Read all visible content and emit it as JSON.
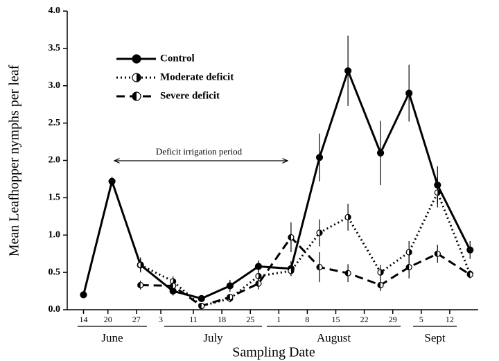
{
  "chart_data": {
    "type": "line",
    "x_label": "Sampling Date",
    "y_label": "Mean Leafhopper nymphs per leaf",
    "annotation": "Deficit irrigation period",
    "month_labels": [
      "June",
      "July",
      "August",
      "Sept"
    ],
    "x": [
      165,
      172,
      179,
      187,
      194,
      201,
      208,
      216,
      223,
      230,
      238,
      245,
      252,
      260
    ],
    "xlim": [
      161,
      262
    ],
    "xticks": [
      {
        "value": 165,
        "label": "14"
      },
      {
        "value": 171,
        "label": "20"
      },
      {
        "value": 178,
        "label": "27"
      },
      {
        "value": 184,
        "label": "3"
      },
      {
        "value": 192,
        "label": "11"
      },
      {
        "value": 199,
        "label": "18"
      },
      {
        "value": 206,
        "label": "25"
      },
      {
        "value": 213,
        "label": "1"
      },
      {
        "value": 220,
        "label": "8"
      },
      {
        "value": 227,
        "label": "15"
      },
      {
        "value": 234,
        "label": "22"
      },
      {
        "value": 241,
        "label": "29"
      },
      {
        "value": 248,
        "label": "5"
      },
      {
        "value": 255,
        "label": "12"
      }
    ],
    "ylim": [
      0,
      4
    ],
    "yticks": [
      {
        "value": 0,
        "label": "0.0"
      },
      {
        "value": 0.5,
        "label": "0.5"
      },
      {
        "value": 1,
        "label": "1.0"
      },
      {
        "value": 1.5,
        "label": "1.5"
      },
      {
        "value": 2,
        "label": "2.0"
      },
      {
        "value": 2.5,
        "label": "2.5"
      },
      {
        "value": 3,
        "label": "3.0"
      },
      {
        "value": 3.5,
        "label": "3.5"
      },
      {
        "value": 4,
        "label": "4.0"
      }
    ],
    "series": [
      {
        "name": "Control",
        "color": "#000000",
        "line_style": "solid",
        "marker": "filled",
        "values": [
          0.2,
          1.72,
          0.6,
          0.25,
          0.15,
          0.32,
          0.58,
          0.55,
          2.04,
          3.2,
          2.1,
          2.9,
          1.67,
          0.8
        ],
        "errors": [
          0.03,
          0.06,
          0.1,
          0.06,
          0.04,
          0.08,
          0.08,
          0.1,
          0.32,
          0.47,
          0.43,
          0.38,
          0.25,
          0.12
        ]
      },
      {
        "name": "Moderate deficit",
        "color": "#000000",
        "line_style": "dotted",
        "marker": "right-half",
        "values": [
          null,
          null,
          0.6,
          0.38,
          0.05,
          0.15,
          0.45,
          0.52,
          1.03,
          1.24,
          0.5,
          0.77,
          1.57,
          0.48
        ],
        "errors": [
          null,
          null,
          0.08,
          0.07,
          0.03,
          0.05,
          0.1,
          0.06,
          0.18,
          0.18,
          0.1,
          0.15,
          0.2,
          0.05
        ]
      },
      {
        "name": "Severe deficit",
        "color": "#000000",
        "line_style": "dashed",
        "marker": "left-half",
        "values": [
          null,
          null,
          0.33,
          0.32,
          0.05,
          0.17,
          0.35,
          0.97,
          0.57,
          0.49,
          0.33,
          0.57,
          0.75,
          0.47
        ],
        "errors": [
          null,
          null,
          0.06,
          0.05,
          0.03,
          0.04,
          0.08,
          0.2,
          0.2,
          0.12,
          0.08,
          0.15,
          0.12,
          0.05
        ]
      }
    ]
  }
}
